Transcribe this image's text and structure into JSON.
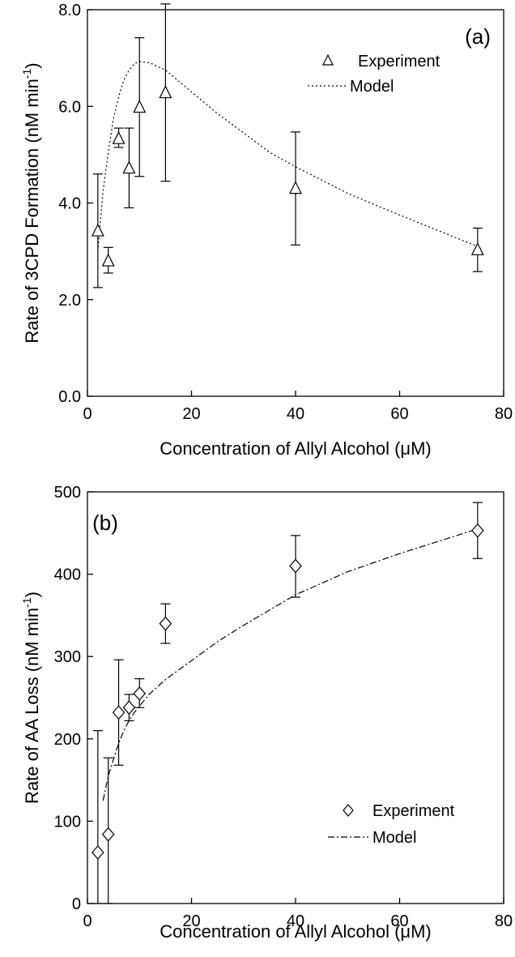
{
  "chart_data": [
    {
      "type": "scatter",
      "panel_label": "(a)",
      "xlabel_main": "Concentration of Allyl Alcohol (",
      "xlabel_unit": "μM",
      "xlabel_close": ")",
      "ylabel_main": "Rate of 3CPD Formation (nM min",
      "ylabel_sup": "-1",
      "ylabel_close": ")",
      "xlim": [
        0,
        80
      ],
      "ylim": [
        0,
        8
      ],
      "xticks": [
        "0",
        "20",
        "40",
        "60",
        "80"
      ],
      "yticks": [
        "0.0",
        "2.0",
        "4.0",
        "6.0",
        "8.0"
      ],
      "grid": false,
      "legend_position": "top-right",
      "series": [
        {
          "name": "Experiment",
          "marker": "triangle",
          "x": [
            2,
            4,
            6,
            8,
            10,
            15,
            40,
            75
          ],
          "y": [
            3.42,
            2.8,
            5.33,
            4.72,
            5.98,
            6.28,
            4.3,
            3.03
          ],
          "err_low": [
            2.25,
            2.55,
            5.15,
            3.9,
            4.55,
            4.45,
            3.13,
            2.58
          ],
          "err_high": [
            4.6,
            3.08,
            5.55,
            5.55,
            7.42,
            8.12,
            5.47,
            3.48
          ]
        },
        {
          "name": "Model",
          "style": "dotted",
          "x": [
            2,
            3,
            4,
            5,
            6,
            7,
            8,
            9,
            10,
            12,
            15,
            20,
            25,
            30,
            35,
            40,
            50,
            60,
            75
          ],
          "y": [
            3.0,
            4.25,
            5.05,
            5.75,
            6.2,
            6.55,
            6.75,
            6.88,
            6.93,
            6.9,
            6.75,
            6.3,
            5.85,
            5.45,
            5.05,
            4.75,
            4.2,
            3.75,
            3.1
          ]
        }
      ]
    },
    {
      "type": "scatter",
      "panel_label": "(b)",
      "xlabel_main": "Concentration of Allyl Alcohol (",
      "xlabel_unit": "μM",
      "xlabel_close": ")",
      "ylabel_main": "Rate of AA Loss (nM min",
      "ylabel_sup": "-1",
      "ylabel_close": ")",
      "xlim": [
        0,
        80
      ],
      "ylim": [
        0,
        500
      ],
      "xticks": [
        "0",
        "20",
        "40",
        "60",
        "80"
      ],
      "yticks": [
        "0",
        "100",
        "200",
        "300",
        "400",
        "500"
      ],
      "grid": false,
      "legend_position": "bottom-right",
      "series": [
        {
          "name": "Experiment",
          "marker": "diamond",
          "x": [
            2,
            4,
            6,
            8,
            10,
            15,
            40,
            75
          ],
          "y": [
            62,
            84,
            232,
            238,
            255,
            340,
            410,
            453
          ],
          "err_low": [
            0,
            0,
            168,
            222,
            238,
            316,
            372,
            419
          ],
          "err_high": [
            210,
            177,
            296,
            254,
            273,
            364,
            447,
            487
          ]
        },
        {
          "name": "Model",
          "style": "dash-dot",
          "x": [
            3,
            4,
            5,
            6,
            7,
            8,
            9,
            10,
            12,
            15,
            20,
            25,
            30,
            40,
            50,
            60,
            75
          ],
          "y": [
            125,
            155,
            175,
            195,
            210,
            222,
            232,
            240,
            255,
            272,
            295,
            318,
            338,
            375,
            403,
            425,
            455
          ]
        }
      ]
    }
  ]
}
